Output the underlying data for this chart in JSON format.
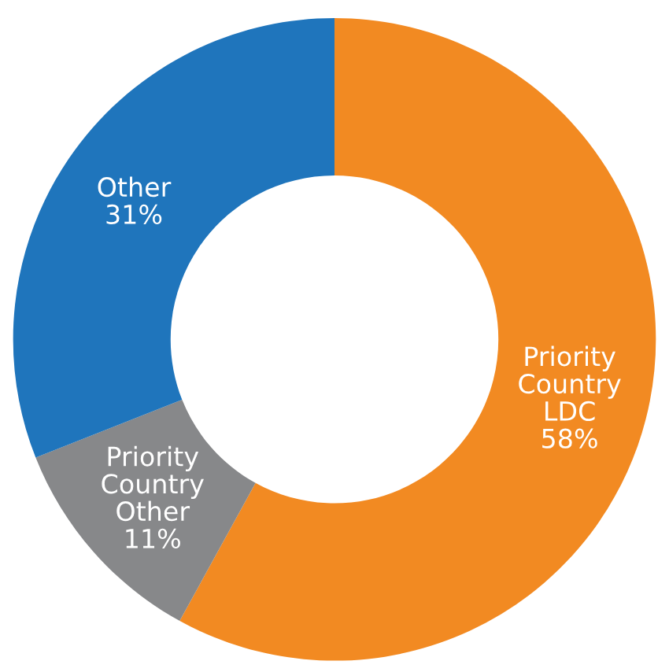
{
  "chart_data": {
    "type": "donut",
    "categories": [
      "Priority Country LDC",
      "Priority Country Other",
      "Other"
    ],
    "values": [
      58,
      11,
      31
    ],
    "colors": [
      "#f28a22",
      "#87888a",
      "#1f75bc"
    ],
    "value_labels": [
      "58%",
      "11%",
      "31%"
    ],
    "legend": false
  }
}
